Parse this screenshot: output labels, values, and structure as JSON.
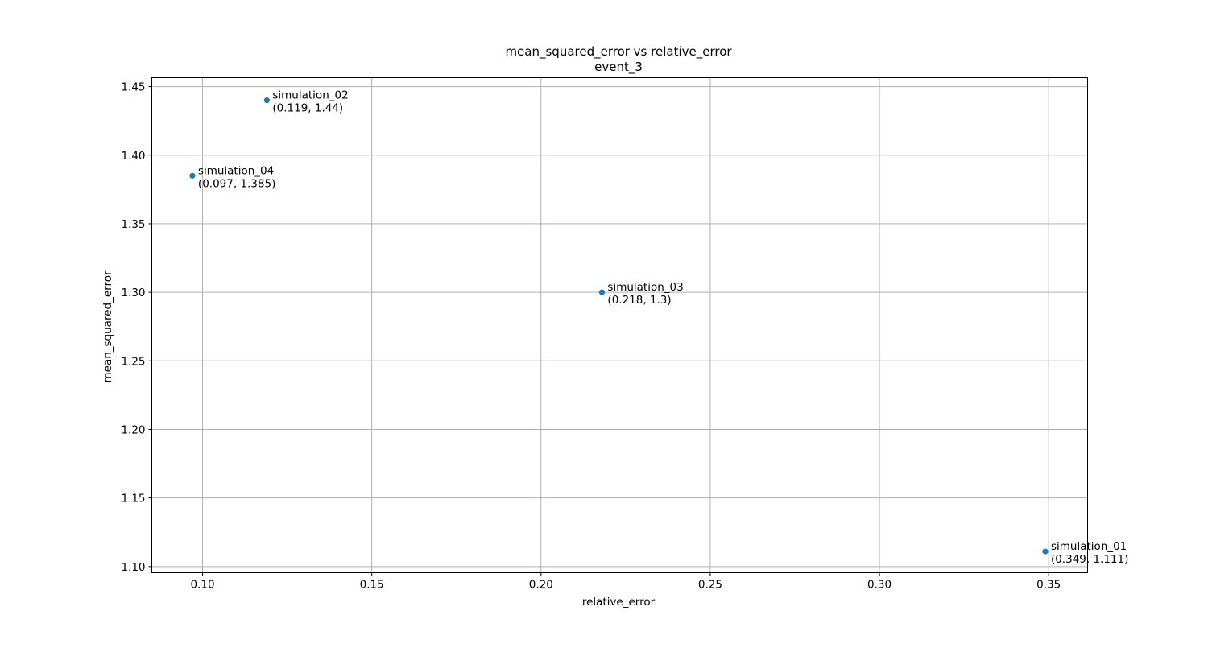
{
  "chart_data": {
    "type": "scatter",
    "title": "mean_squared_error vs relative_error",
    "subtitle": "event_3",
    "xlabel": "relative_error",
    "ylabel": "mean_squared_error",
    "xlim": [
      0.085,
      0.3615
    ],
    "ylim": [
      1.0955,
      1.4565
    ],
    "xticks": [
      0.1,
      0.15,
      0.2,
      0.25,
      0.3,
      0.35
    ],
    "xtick_labels": [
      "0.10",
      "0.15",
      "0.20",
      "0.25",
      "0.30",
      "0.35"
    ],
    "yticks": [
      1.1,
      1.15,
      1.2,
      1.25,
      1.3,
      1.35,
      1.4,
      1.45
    ],
    "ytick_labels": [
      "1.10",
      "1.15",
      "1.20",
      "1.25",
      "1.30",
      "1.35",
      "1.40",
      "1.45"
    ],
    "grid": true,
    "marker_color": "#1f77b4",
    "points": [
      {
        "label": "simulation_02",
        "coords_label": "(0.119, 1.44)",
        "x": 0.119,
        "y": 1.44
      },
      {
        "label": "simulation_04",
        "coords_label": "(0.097, 1.385)",
        "x": 0.097,
        "y": 1.385
      },
      {
        "label": "simulation_03",
        "coords_label": "(0.218, 1.3)",
        "x": 0.218,
        "y": 1.3
      },
      {
        "label": "simulation_01",
        "coords_label": "(0.349, 1.111)",
        "x": 0.349,
        "y": 1.111
      }
    ]
  }
}
